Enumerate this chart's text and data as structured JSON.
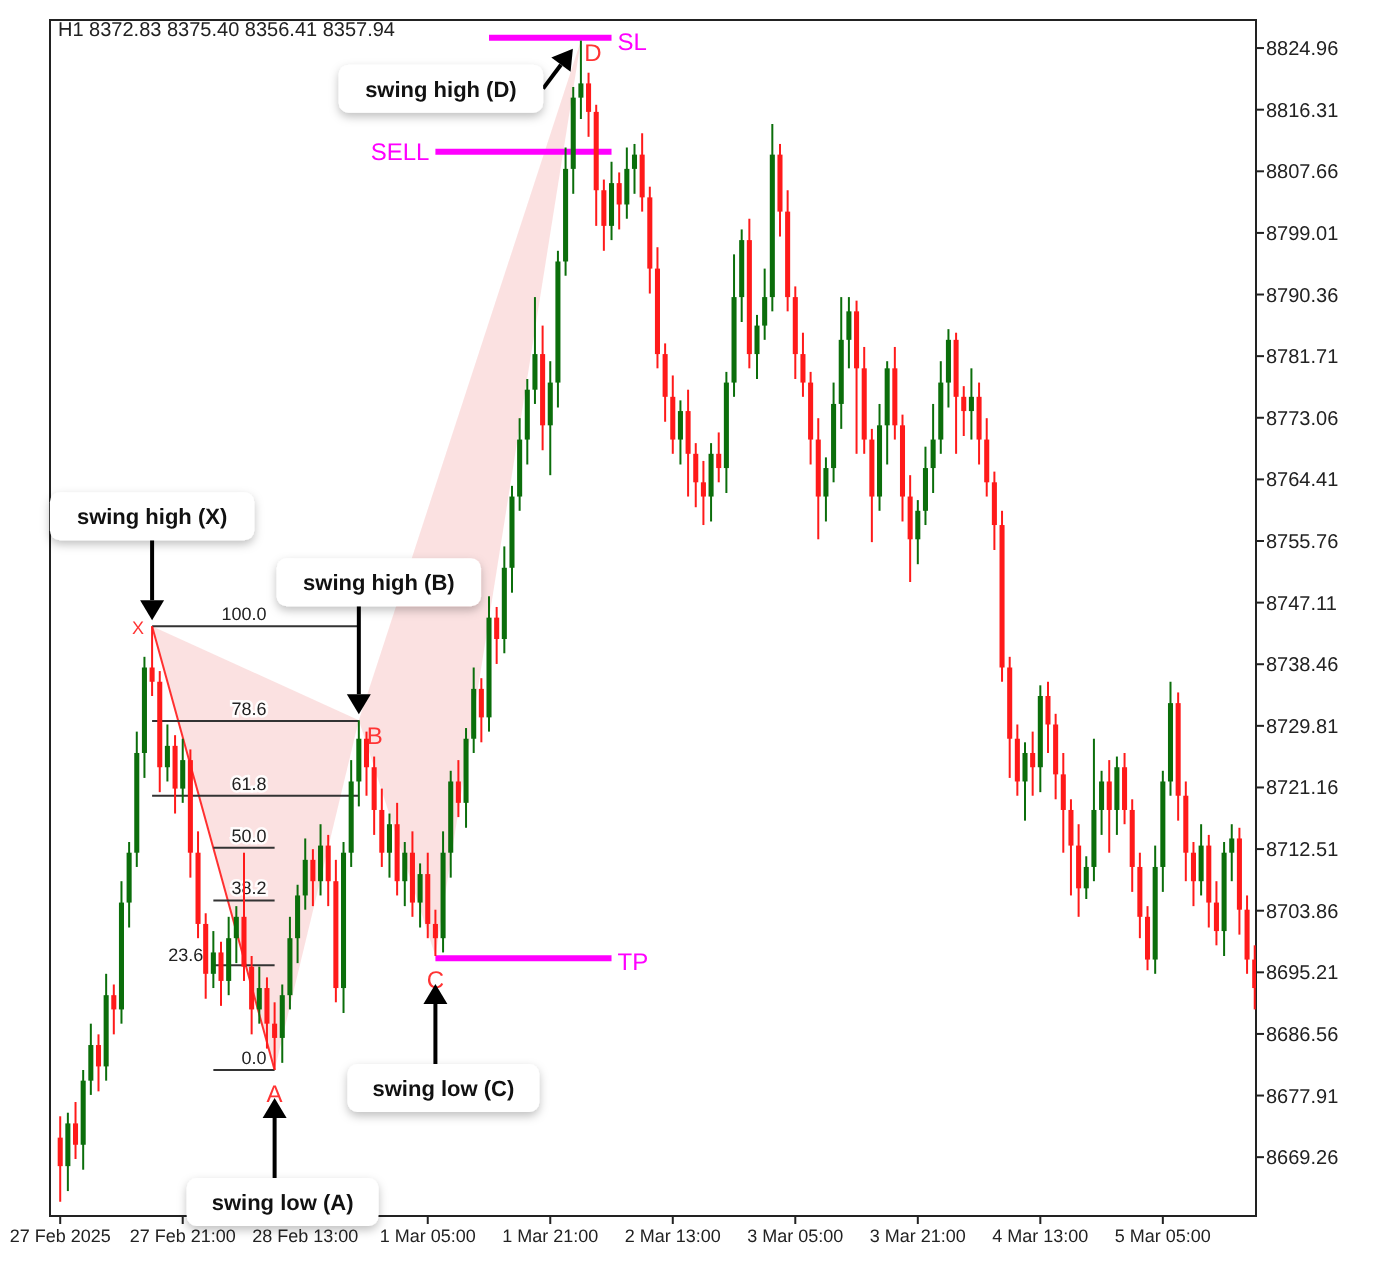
{
  "chart_data": {
    "type": "candlestick",
    "title": "H1 8372.83 8375.40 8356.41 8357.94",
    "x": [
      "2025-02-27T05:00",
      "2025-02-27T06:00",
      "2025-02-27T07:00",
      "2025-02-27T08:00",
      "2025-02-27T09:00",
      "2025-02-27T10:00",
      "2025-02-27T11:00",
      "2025-02-27T12:00",
      "2025-02-27T13:00",
      "2025-02-27T14:00",
      "2025-02-27T15:00",
      "2025-02-27T16:00",
      "2025-02-27T17:00",
      "2025-02-27T18:00",
      "2025-02-27T19:00",
      "2025-02-27T20:00",
      "2025-02-27T21:00",
      "2025-02-27T22:00",
      "2025-02-27T23:00",
      "2025-02-28T00:00",
      "2025-02-28T01:00",
      "2025-02-28T02:00",
      "2025-02-28T03:00",
      "2025-02-28T04:00",
      "2025-02-28T05:00",
      "2025-02-28T06:00",
      "2025-02-28T07:00",
      "2025-02-28T08:00",
      "2025-02-28T09:00",
      "2025-02-28T10:00",
      "2025-02-28T11:00",
      "2025-02-28T12:00",
      "2025-02-28T13:00",
      "2025-02-28T14:00",
      "2025-02-28T15:00",
      "2025-02-28T16:00",
      "2025-02-28T17:00",
      "2025-02-28T18:00",
      "2025-02-28T19:00",
      "2025-02-28T20:00",
      "2025-02-28T21:00",
      "2025-02-28T22:00",
      "2025-02-28T23:00",
      "2025-03-01T00:00",
      "2025-03-01T01:00",
      "2025-03-01T02:00",
      "2025-03-01T03:00",
      "2025-03-01T04:00",
      "2025-03-01T05:00",
      "2025-03-01T06:00",
      "2025-03-01T07:00",
      "2025-03-01T08:00",
      "2025-03-01T09:00",
      "2025-03-01T10:00",
      "2025-03-01T11:00",
      "2025-03-01T12:00",
      "2025-03-01T13:00",
      "2025-03-01T14:00",
      "2025-03-01T15:00",
      "2025-03-01T16:00",
      "2025-03-01T17:00",
      "2025-03-01T18:00",
      "2025-03-01T19:00",
      "2025-03-01T20:00",
      "2025-03-01T21:00",
      "2025-03-01T22:00",
      "2025-03-01T23:00",
      "2025-03-02T00:00",
      "2025-03-02T01:00",
      "2025-03-02T02:00",
      "2025-03-02T03:00",
      "2025-03-02T04:00",
      "2025-03-02T05:00",
      "2025-03-02T06:00",
      "2025-03-02T07:00",
      "2025-03-02T08:00",
      "2025-03-02T09:00",
      "2025-03-02T10:00",
      "2025-03-02T11:00",
      "2025-03-02T12:00",
      "2025-03-02T13:00",
      "2025-03-02T14:00",
      "2025-03-02T15:00",
      "2025-03-02T16:00",
      "2025-03-02T17:00",
      "2025-03-02T18:00",
      "2025-03-02T19:00",
      "2025-03-02T20:00",
      "2025-03-02T21:00",
      "2025-03-02T22:00",
      "2025-03-02T23:00",
      "2025-03-03T00:00",
      "2025-03-03T01:00",
      "2025-03-03T02:00",
      "2025-03-03T03:00",
      "2025-03-03T04:00",
      "2025-03-03T05:00",
      "2025-03-03T06:00",
      "2025-03-03T07:00",
      "2025-03-03T08:00",
      "2025-03-03T09:00",
      "2025-03-03T10:00",
      "2025-03-03T11:00",
      "2025-03-03T12:00",
      "2025-03-03T13:00",
      "2025-03-03T14:00",
      "2025-03-03T15:00",
      "2025-03-03T16:00",
      "2025-03-03T17:00",
      "2025-03-03T18:00",
      "2025-03-03T19:00",
      "2025-03-03T20:00",
      "2025-03-03T21:00",
      "2025-03-03T22:00",
      "2025-03-03T23:00",
      "2025-03-04T00:00",
      "2025-03-04T01:00",
      "2025-03-04T02:00",
      "2025-03-04T03:00",
      "2025-03-04T04:00",
      "2025-03-04T05:00",
      "2025-03-04T06:00",
      "2025-03-04T07:00",
      "2025-03-04T08:00",
      "2025-03-04T09:00",
      "2025-03-04T10:00",
      "2025-03-04T11:00",
      "2025-03-04T12:00",
      "2025-03-04T13:00",
      "2025-03-04T14:00",
      "2025-03-04T15:00",
      "2025-03-04T16:00",
      "2025-03-04T17:00",
      "2025-03-04T18:00",
      "2025-03-04T19:00",
      "2025-03-04T20:00",
      "2025-03-04T21:00",
      "2025-03-04T22:00",
      "2025-03-04T23:00",
      "2025-03-05T00:00",
      "2025-03-05T01:00",
      "2025-03-05T02:00",
      "2025-03-05T03:00",
      "2025-03-05T04:00",
      "2025-03-05T05:00",
      "2025-03-05T06:00",
      "2025-03-05T07:00",
      "2025-03-05T08:00",
      "2025-03-05T09:00",
      "2025-03-05T10:00",
      "2025-03-05T11:00",
      "2025-03-05T12:00",
      "2025-03-05T13:00",
      "2025-03-05T14:00",
      "2025-03-05T15:00",
      "2025-03-05T16:00",
      "2025-03-05T17:00"
    ],
    "ohlc": [
      [
        8672,
        8675,
        8663,
        8668
      ],
      [
        8668,
        8675.5,
        8664.5,
        8674
      ],
      [
        8674,
        8677,
        8669,
        8671
      ],
      [
        8671,
        8681.5,
        8667.5,
        8680
      ],
      [
        8680,
        8688,
        8678,
        8685
      ],
      [
        8685,
        8686.5,
        8678.5,
        8682
      ],
      [
        8682,
        8695,
        8680,
        8692
      ],
      [
        8692,
        8693.5,
        8686.5,
        8690
      ],
      [
        8690,
        8708,
        8688,
        8705
      ],
      [
        8705,
        8713.5,
        8701.5,
        8712
      ],
      [
        8712,
        8729,
        8710,
        8726
      ],
      [
        8726,
        8739.5,
        8722.5,
        8738
      ],
      [
        8738,
        8743.8,
        8734,
        8736
      ],
      [
        8736,
        8737.5,
        8720.5,
        8724
      ],
      [
        8724,
        8730,
        8722,
        8727
      ],
      [
        8727,
        8728.5,
        8717.5,
        8721
      ],
      [
        8721,
        8728,
        8719,
        8725
      ],
      [
        8725,
        8726.5,
        8708.5,
        8712
      ],
      [
        8712,
        8715,
        8700,
        8702
      ],
      [
        8702,
        8703.5,
        8691.5,
        8695
      ],
      [
        8695,
        8701,
        8693,
        8698
      ],
      [
        8698,
        8699.5,
        8690.5,
        8694
      ],
      [
        8694,
        8703,
        8692,
        8700
      ],
      [
        8700,
        8704.5,
        8696.5,
        8703
      ],
      [
        8703,
        8712,
        8694,
        8696
      ],
      [
        8696,
        8697.5,
        8686.5,
        8690
      ],
      [
        8690,
        8696,
        8688,
        8693
      ],
      [
        8693,
        8694.5,
        8684.5,
        8688
      ],
      [
        8688,
        8691,
        8681.5,
        8686
      ],
      [
        8686,
        8693.5,
        8682.5,
        8692
      ],
      [
        8692,
        8703,
        8690,
        8700
      ],
      [
        8700,
        8707.5,
        8696.5,
        8706
      ],
      [
        8706,
        8714,
        8704,
        8711
      ],
      [
        8711,
        8712.5,
        8704.5,
        8708
      ],
      [
        8708,
        8716,
        8706,
        8713
      ],
      [
        8713,
        8714.5,
        8704.5,
        8708
      ],
      [
        8708,
        8711,
        8691,
        8693
      ],
      [
        8693,
        8713.5,
        8689.5,
        8712
      ],
      [
        8712,
        8725,
        8710,
        8722
      ],
      [
        8722,
        8730.6,
        8718.5,
        8728
      ],
      [
        8728,
        8729,
        8720,
        8724
      ],
      [
        8724,
        8725.5,
        8714.5,
        8718
      ],
      [
        8718,
        8721,
        8710,
        8712
      ],
      [
        8712,
        8717.5,
        8708.5,
        8716
      ],
      [
        8716,
        8719,
        8706,
        8708
      ],
      [
        8708,
        8713.5,
        8704.5,
        8712
      ],
      [
        8712,
        8715,
        8703,
        8705
      ],
      [
        8705,
        8710.5,
        8701.5,
        8709
      ],
      [
        8709,
        8712,
        8700,
        8702
      ],
      [
        8702,
        8704,
        8697.5,
        8700
      ],
      [
        8700,
        8715,
        8698,
        8712
      ],
      [
        8712,
        8723.5,
        8708.5,
        8722
      ],
      [
        8722,
        8725,
        8717,
        8719
      ],
      [
        8719,
        8729.5,
        8715.5,
        8728
      ],
      [
        8728,
        8738,
        8726,
        8735
      ],
      [
        8735,
        8736.5,
        8727.5,
        8731
      ],
      [
        8731,
        8748,
        8729,
        8745
      ],
      [
        8745,
        8746.5,
        8738.5,
        8742
      ],
      [
        8742,
        8755,
        8740,
        8752
      ],
      [
        8752,
        8763.5,
        8748.5,
        8762
      ],
      [
        8762,
        8773,
        8760,
        8770
      ],
      [
        8770,
        8778.5,
        8766.5,
        8777
      ],
      [
        8777,
        8790,
        8775,
        8782
      ],
      [
        8782,
        8786,
        8768.5,
        8772
      ],
      [
        8772,
        8781,
        8765,
        8778
      ],
      [
        8778,
        8796.5,
        8774.5,
        8795
      ],
      [
        8795,
        8811,
        8793,
        8808
      ],
      [
        8808,
        8819.5,
        8804.5,
        8818
      ],
      [
        8818,
        8826,
        8815,
        8820
      ],
      [
        8820,
        8821.5,
        8812.5,
        8816
      ],
      [
        8816,
        8817,
        8800,
        8805
      ],
      [
        8805,
        8806.5,
        8796.5,
        8800
      ],
      [
        8800,
        8809,
        8798,
        8806
      ],
      [
        8806,
        8807.5,
        8799.5,
        8803
      ],
      [
        8803,
        8811,
        8801,
        8808
      ],
      [
        8808,
        8811.5,
        8804.5,
        8810
      ],
      [
        8810,
        8813,
        8802,
        8804
      ],
      [
        8804,
        8805.5,
        8790.5,
        8794
      ],
      [
        8794,
        8797,
        8780,
        8782
      ],
      [
        8782,
        8783.5,
        8772.5,
        8776
      ],
      [
        8776,
        8779,
        8768,
        8770
      ],
      [
        8770,
        8775.5,
        8766.5,
        8774
      ],
      [
        8774,
        8777,
        8762,
        8768
      ],
      [
        8768,
        8769.5,
        8760.5,
        8764
      ],
      [
        8764,
        8767,
        8758,
        8762
      ],
      [
        8762,
        8769.5,
        8758.5,
        8768
      ],
      [
        8768,
        8771,
        8764,
        8766
      ],
      [
        8766,
        8779.5,
        8762.5,
        8778
      ],
      [
        8778,
        8796,
        8776,
        8790
      ],
      [
        8790,
        8799.5,
        8786.5,
        8798
      ],
      [
        8798,
        8801,
        8780,
        8782
      ],
      [
        8782,
        8787.5,
        8778.5,
        8786
      ],
      [
        8786,
        8794,
        8784,
        8790
      ],
      [
        8790,
        8814.3,
        8788,
        8810
      ],
      [
        8810,
        8811.5,
        8798.5,
        8802
      ],
      [
        8802,
        8805,
        8788,
        8790
      ],
      [
        8790,
        8791.5,
        8778.5,
        8782
      ],
      [
        8782,
        8785,
        8776,
        8778
      ],
      [
        8778,
        8779.5,
        8766.5,
        8770
      ],
      [
        8770,
        8773,
        8756,
        8762
      ],
      [
        8762,
        8767.5,
        8758.5,
        8766
      ],
      [
        8766,
        8778,
        8764,
        8775
      ],
      [
        8775,
        8790,
        8771.5,
        8784
      ],
      [
        8784,
        8790,
        8780,
        8788
      ],
      [
        8788,
        8789.5,
        8768,
        8780
      ],
      [
        8780,
        8783,
        8768,
        8770
      ],
      [
        8770,
        8771.5,
        8755.6,
        8762
      ],
      [
        8762,
        8775,
        8760,
        8772
      ],
      [
        8772,
        8781,
        8766.5,
        8780
      ],
      [
        8780,
        8783,
        8770,
        8772
      ],
      [
        8772,
        8773.5,
        8758.5,
        8762
      ],
      [
        8762,
        8765,
        8750,
        8756
      ],
      [
        8756,
        8761.5,
        8752.5,
        8760
      ],
      [
        8760,
        8769,
        8758,
        8766
      ],
      [
        8766,
        8775,
        8762.5,
        8770
      ],
      [
        8770,
        8781,
        8768,
        8778
      ],
      [
        8778,
        8785.5,
        8774.5,
        8784
      ],
      [
        8784,
        8785,
        8768,
        8776
      ],
      [
        8776,
        8777.5,
        8770.5,
        8774
      ],
      [
        8774,
        8780,
        8770,
        8776
      ],
      [
        8776,
        8778,
        8766.5,
        8770
      ],
      [
        8770,
        8773,
        8762,
        8764
      ],
      [
        8764,
        8765.5,
        8754.5,
        8758
      ],
      [
        8758,
        8760,
        8736,
        8738
      ],
      [
        8738,
        8739.5,
        8722.5,
        8728
      ],
      [
        8728,
        8730,
        8720,
        8722
      ],
      [
        8722,
        8727.5,
        8716.5,
        8726
      ],
      [
        8726,
        8729,
        8720,
        8724
      ],
      [
        8724,
        8735.5,
        8720.5,
        8734
      ],
      [
        8734,
        8736,
        8726,
        8730
      ],
      [
        8730,
        8731.5,
        8719.5,
        8723
      ],
      [
        8723,
        8726,
        8712,
        8718
      ],
      [
        8718,
        8719.5,
        8706,
        8713
      ],
      [
        8713,
        8716,
        8703,
        8707
      ],
      [
        8707,
        8711.5,
        8705.5,
        8710
      ],
      [
        8710,
        8728,
        8708,
        8718
      ],
      [
        8718,
        8723.5,
        8714.5,
        8722
      ],
      [
        8722,
        8725,
        8712,
        8718
      ],
      [
        8718,
        8725.5,
        8714.5,
        8724
      ],
      [
        8724,
        8726,
        8716,
        8718
      ],
      [
        8718,
        8719.5,
        8706.5,
        8710
      ],
      [
        8710,
        8712,
        8700,
        8703
      ],
      [
        8703,
        8704.5,
        8695.5,
        8697
      ],
      [
        8697,
        8713,
        8695,
        8710
      ],
      [
        8710,
        8723.5,
        8706.5,
        8722
      ],
      [
        8722,
        8736,
        8720,
        8733
      ],
      [
        8733,
        8734.5,
        8716.5,
        8720
      ],
      [
        8720,
        8722,
        8708,
        8712
      ],
      [
        8712,
        8713.5,
        8704.5,
        8708
      ],
      [
        8708,
        8716,
        8706,
        8713
      ],
      [
        8713,
        8714.5,
        8701.5,
        8705
      ],
      [
        8705,
        8708,
        8699,
        8701
      ],
      [
        8701,
        8713.5,
        8697.5,
        8712
      ],
      [
        8712,
        8716,
        8708,
        8714
      ],
      [
        8714,
        8715.5,
        8700.5,
        8704
      ],
      [
        8704,
        8706,
        8695,
        8697
      ],
      [
        8697,
        8699,
        8690,
        8693
      ]
    ],
    "colors": [
      "#ff1a1a",
      "#0b6e0b",
      "#ff1a1a",
      "#0b6e0b",
      "#0b6e0b",
      "#ff1a1a",
      "#0b6e0b",
      "#ff1a1a",
      "#0b6e0b",
      "#0b6e0b",
      "#0b6e0b",
      "#0b6e0b",
      "#ff1a1a",
      "#ff1a1a",
      "#0b6e0b",
      "#ff1a1a",
      "#0b6e0b",
      "#ff1a1a",
      "#ff1a1a",
      "#ff1a1a",
      "#0b6e0b",
      "#ff1a1a",
      "#0b6e0b",
      "#0b6e0b",
      "#ff1a1a",
      "#ff1a1a",
      "#0b6e0b",
      "#ff1a1a",
      "#ff1a1a",
      "#0b6e0b",
      "#0b6e0b",
      "#0b6e0b",
      "#0b6e0b",
      "#ff1a1a",
      "#0b6e0b",
      "#ff1a1a",
      "#ff1a1a",
      "#0b6e0b",
      "#0b6e0b",
      "#0b6e0b",
      "#ff1a1a",
      "#ff1a1a",
      "#ff1a1a",
      "#0b6e0b",
      "#ff1a1a",
      "#0b6e0b",
      "#ff1a1a",
      "#0b6e0b",
      "#ff1a1a",
      "#ff1a1a",
      "#0b6e0b",
      "#0b6e0b",
      "#ff1a1a",
      "#0b6e0b",
      "#0b6e0b",
      "#ff1a1a",
      "#0b6e0b",
      "#ff1a1a",
      "#0b6e0b",
      "#0b6e0b",
      "#0b6e0b",
      "#0b6e0b",
      "#0b6e0b",
      "#ff1a1a",
      "#0b6e0b",
      "#0b6e0b",
      "#0b6e0b",
      "#0b6e0b",
      "#0b6e0b",
      "#ff1a1a",
      "#ff1a1a",
      "#ff1a1a",
      "#0b6e0b",
      "#ff1a1a",
      "#0b6e0b",
      "#0b6e0b",
      "#ff1a1a",
      "#ff1a1a",
      "#ff1a1a",
      "#ff1a1a",
      "#ff1a1a",
      "#0b6e0b",
      "#ff1a1a",
      "#ff1a1a",
      "#ff1a1a",
      "#0b6e0b",
      "#ff1a1a",
      "#0b6e0b",
      "#0b6e0b",
      "#0b6e0b",
      "#ff1a1a",
      "#0b6e0b",
      "#0b6e0b",
      "#0b6e0b",
      "#ff1a1a",
      "#ff1a1a",
      "#ff1a1a",
      "#ff1a1a",
      "#ff1a1a",
      "#ff1a1a",
      "#0b6e0b",
      "#0b6e0b",
      "#0b6e0b",
      "#0b6e0b",
      "#ff1a1a",
      "#ff1a1a",
      "#ff1a1a",
      "#0b6e0b",
      "#0b6e0b",
      "#ff1a1a",
      "#ff1a1a",
      "#ff1a1a",
      "#0b6e0b",
      "#0b6e0b",
      "#0b6e0b",
      "#0b6e0b",
      "#0b6e0b",
      "#ff1a1a",
      "#ff1a1a",
      "#0b6e0b",
      "#ff1a1a",
      "#ff1a1a",
      "#ff1a1a",
      "#ff1a1a",
      "#ff1a1a",
      "#ff1a1a",
      "#0b6e0b",
      "#ff1a1a",
      "#0b6e0b",
      "#ff1a1a",
      "#ff1a1a",
      "#ff1a1a",
      "#ff1a1a",
      "#ff1a1a",
      "#0b6e0b",
      "#0b6e0b",
      "#0b6e0b",
      "#ff1a1a",
      "#0b6e0b",
      "#ff1a1a",
      "#ff1a1a",
      "#ff1a1a",
      "#ff1a1a",
      "#0b6e0b",
      "#0b6e0b",
      "#0b6e0b",
      "#ff1a1a",
      "#ff1a1a",
      "#ff1a1a",
      "#0b6e0b",
      "#ff1a1a",
      "#ff1a1a",
      "#0b6e0b",
      "#0b6e0b",
      "#ff1a1a",
      "#ff1a1a",
      "#ff1a1a"
    ],
    "series": [
      {
        "type": "line",
        "name": "100.0",
        "color": "#333333",
        "x": [
          "2025-02-27T17:00",
          "2025-02-28T20:00"
        ],
        "values": [
          8743.8,
          8743.8
        ]
      },
      {
        "type": "line",
        "name": "78.6",
        "color": "#333333",
        "x": [
          "2025-02-27T17:00",
          "2025-02-28T20:00"
        ],
        "values": [
          8730.5,
          8730.5
        ]
      },
      {
        "type": "line",
        "name": "61.8",
        "color": "#333333",
        "x": [
          "2025-02-27T17:00",
          "2025-02-28T20:00"
        ],
        "values": [
          8720.0,
          8720.0
        ]
      },
      {
        "type": "line",
        "name": "50.0",
        "color": "#333333",
        "x": [
          "2025-02-28T01:00",
          "2025-02-28T09:00"
        ],
        "values": [
          8712.7,
          8712.7
        ]
      },
      {
        "type": "line",
        "name": "38.2",
        "color": "#333333",
        "x": [
          "2025-02-28T01:00",
          "2025-02-28T09:00"
        ],
        "values": [
          8705.3,
          8705.3
        ]
      },
      {
        "type": "line",
        "name": "23.6",
        "color": "#333333",
        "x": [
          "2025-02-28T01:00",
          "2025-02-28T09:00"
        ],
        "values": [
          8696.2,
          8696.2
        ]
      },
      {
        "type": "line",
        "name": "0.0",
        "color": "#333333",
        "x": [
          "2025-02-28T01:00",
          "2025-02-28T09:00"
        ],
        "values": [
          8681.5,
          8681.5
        ]
      },
      {
        "type": "line",
        "name": "SL",
        "color": "#ff00ff",
        "x": [
          "2025-03-01T13:00",
          "2025-03-02T05:00"
        ],
        "values": [
          8826.4,
          8826.4
        ]
      },
      {
        "type": "line",
        "name": "SELL",
        "color": "#ff00ff",
        "x": [
          "2025-03-01T06:00",
          "2025-03-02T05:00"
        ],
        "values": [
          8810.4,
          8810.4
        ]
      },
      {
        "type": "line",
        "name": "TP",
        "color": "#ff00ff",
        "x": [
          "2025-03-01T06:00",
          "2025-03-02T05:00"
        ],
        "values": [
          8697.2,
          8697.2
        ]
      }
    ],
    "annotations": [
      {
        "text": "X",
        "x": "2025-02-27T17:00",
        "y": 8743.8
      },
      {
        "text": "A",
        "x": "2025-02-28T09:00",
        "y": 8681.5
      },
      {
        "text": "B",
        "x": "2025-02-28T20:00",
        "y": 8730.6
      },
      {
        "text": "C",
        "x": "2025-03-01T06:00",
        "y": 8697.5
      },
      {
        "text": "D",
        "x": "2025-03-02T01:00",
        "y": 8826
      },
      "swing high (X)",
      "swing low (A)",
      "swing high (B)",
      "swing low (C)",
      "swing high (D)"
    ],
    "xlim": [
      "2025-02-27T03:40",
      "2025-03-05T17:10"
    ],
    "xticks": [
      {
        "value": "2025-02-27T05:00",
        "label": "27 Feb 2025"
      },
      {
        "value": "2025-02-27T21:00",
        "label": "27 Feb 21:00"
      },
      {
        "value": "2025-02-28T13:00",
        "label": "28 Feb 13:00"
      },
      {
        "value": "2025-03-01T05:00",
        "label": "1 Mar 05:00"
      },
      {
        "value": "2025-03-01T21:00",
        "label": "1 Mar 21:00"
      },
      {
        "value": "2025-03-02T13:00",
        "label": "2 Mar 13:00"
      },
      {
        "value": "2025-03-03T05:00",
        "label": "3 Mar 05:00"
      },
      {
        "value": "2025-03-03T21:00",
        "label": "3 Mar 21:00"
      },
      {
        "value": "2025-03-04T13:00",
        "label": "4 Mar 13:00"
      },
      {
        "value": "2025-03-05T05:00",
        "label": "5 Mar 05:00"
      }
    ],
    "ylim": [
      8661,
      8828.9
    ],
    "yticks": [
      8824.96,
      8816.31,
      8807.66,
      8799.01,
      8790.36,
      8781.71,
      8773.06,
      8764.41,
      8755.76,
      8747.11,
      8738.46,
      8729.81,
      8721.16,
      8712.51,
      8703.86,
      8695.21,
      8686.56,
      8677.91,
      8669.26
    ]
  }
}
